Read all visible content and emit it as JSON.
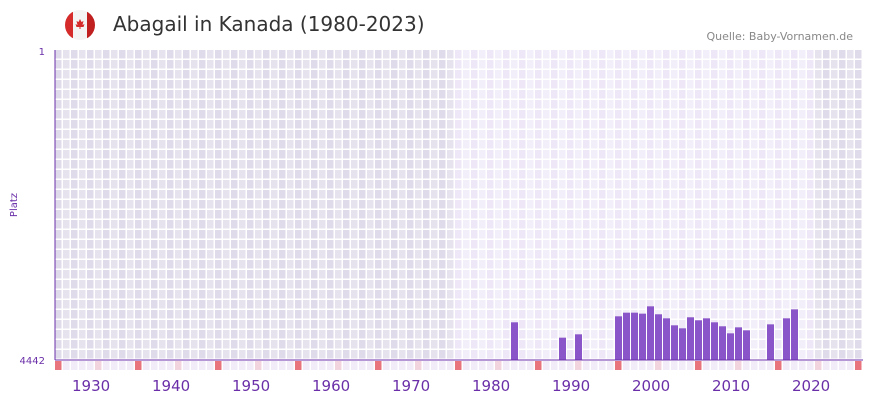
{
  "header": {
    "title": "Abagail in Kanada (1980-2023)",
    "source": "Quelle: Baby-Vornamen.de",
    "flag_icon": "canada-flag-icon"
  },
  "colors": {
    "bar": "#8a55c8",
    "axis": "#6a2fa8",
    "decade": "#e8757e",
    "pink": "#f2d4de",
    "dark_bg": "#e2deeb",
    "light_bg": "#efeaf7"
  },
  "chart_data": {
    "type": "bar",
    "title": "Abagail in Kanada (1980-2023)",
    "ylabel": "Platz",
    "ylim": [
      1,
      4442
    ],
    "y_inverted": true,
    "yticks": [
      "1",
      "4442"
    ],
    "xlim": [
      1928,
      2028
    ],
    "xticks": [
      "1930",
      "1940",
      "1950",
      "1960",
      "1970",
      "1980",
      "1990",
      "2000",
      "2010",
      "2020"
    ],
    "highlight_range": [
      1978,
      2022
    ],
    "x": [
      1985,
      1991,
      1993,
      1998,
      1999,
      2000,
      2001,
      2002,
      2003,
      2004,
      2005,
      2006,
      2007,
      2008,
      2009,
      2010,
      2011,
      2012,
      2013,
      2014,
      2017,
      2019,
      2020
    ],
    "values": [
      3902,
      4122,
      4074,
      3816,
      3764,
      3764,
      3778,
      3673,
      3787,
      3845,
      3945,
      3988,
      3830,
      3873,
      3845,
      3902,
      3959,
      4060,
      3974,
      4017,
      3931,
      3845,
      3716
    ]
  }
}
